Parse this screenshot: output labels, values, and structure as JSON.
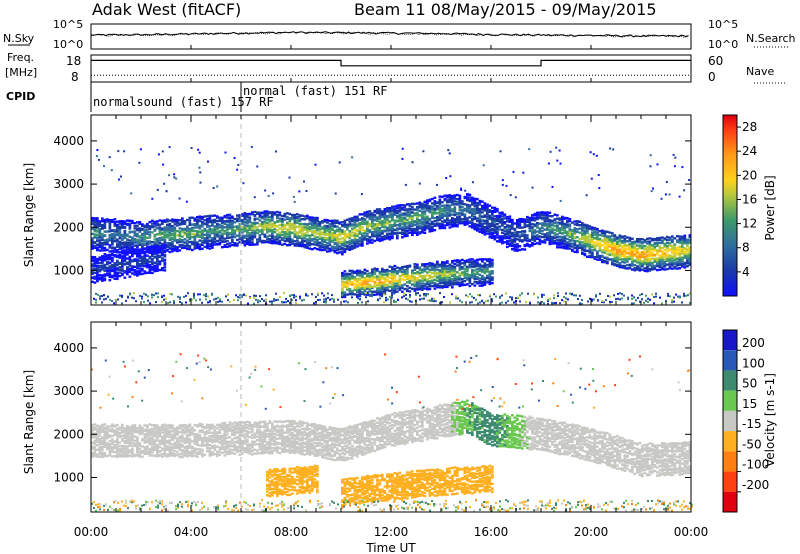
{
  "header": {
    "station": "Adak West (fitACF)",
    "beam_and_dates": "Beam 11  08/May/2015 - 09/May/2015"
  },
  "noise_panel": {
    "left_label": "N.Sky",
    "left_ticks": [
      "10^5",
      "10^0"
    ],
    "right_ticks": [
      "10^5",
      "10^0"
    ],
    "right_label": "N.Search"
  },
  "freq_panel": {
    "left_label_line1": "Freq.",
    "left_label_line2": "[MHz]",
    "left_ticks": [
      "18",
      "8"
    ],
    "right_ticks": [
      "60",
      "0"
    ],
    "right_label": "Nave"
  },
  "cpid_panel": {
    "label": "CPID",
    "programs": [
      {
        "name": "normalsound (fast) 157 RF",
        "start_hour": 0
      },
      {
        "name": "normal (fast) 151 RF",
        "start_hour": 6
      }
    ]
  },
  "x_axis": {
    "title": "Time UT",
    "ticks": [
      "00:00",
      "04:00",
      "08:00",
      "12:00",
      "16:00",
      "20:00",
      "00:00"
    ],
    "tick_hours": [
      0,
      4,
      8,
      12,
      16,
      20,
      24
    ]
  },
  "power_panel": {
    "ylabel": "Slant Range [km]",
    "yticks": [
      "1000",
      "2000",
      "3000",
      "4000"
    ],
    "colorbar_label": "Power [dB]",
    "colorbar_ticks": [
      "4",
      "8",
      "12",
      "16",
      "20",
      "24",
      "28"
    ]
  },
  "velocity_panel": {
    "ylabel": "Slant Range [km]",
    "yticks": [
      "1000",
      "2000",
      "3000",
      "4000"
    ],
    "colorbar_label": "Velocity [m s-1]",
    "colorbar_ticks": [
      "200",
      "100",
      "50",
      "15",
      "-15",
      "-50",
      "-100",
      "-200"
    ]
  },
  "chart_data": [
    {
      "type": "line",
      "title": "Adak West (fitACF)",
      "subtitle": "Beam 11  08/May/2015 - 09/May/2015",
      "panel": "noise",
      "xlabel": "",
      "ylabel": "N.Sky",
      "y_scale": "log",
      "ylim": [
        1,
        100000
      ],
      "x_range_hours": [
        0,
        24
      ],
      "series": [
        {
          "name": "N.Sky",
          "x": [
            0,
            2,
            4,
            6,
            8,
            10,
            12,
            14,
            16,
            18,
            20,
            22,
            24
          ],
          "values": [
            600,
            700,
            1000,
            1500,
            2000,
            1800,
            1500,
            1200,
            800,
            600,
            500,
            400,
            400
          ]
        },
        {
          "name": "N.Search",
          "x": [
            0,
            2,
            4,
            6,
            8,
            10,
            12,
            14,
            16,
            18,
            20,
            22,
            24
          ],
          "values": [
            500,
            600,
            900,
            1300,
            1800,
            1600,
            1300,
            1000,
            700,
            500,
            450,
            350,
            350
          ]
        }
      ]
    },
    {
      "type": "line",
      "panel": "frequency",
      "ylabel": "Freq. [MHz]",
      "ylim": [
        8,
        18
      ],
      "x_range_hours": [
        0,
        24
      ],
      "series": [
        {
          "name": "Freq.",
          "x": [
            0,
            10,
            10,
            18,
            18,
            24
          ],
          "values": [
            16,
            16,
            14,
            14,
            16,
            16
          ]
        },
        {
          "name": "Nave",
          "x": [
            0,
            24
          ],
          "values": [
            15,
            15
          ],
          "axis": "right",
          "ylim": [
            0,
            60
          ]
        }
      ]
    },
    {
      "type": "heatmap",
      "panel": "power",
      "ylabel": "Slant Range [km]",
      "xlabel": "Time UT",
      "ylim": [
        200,
        4600
      ],
      "x_range_hours": [
        0,
        24
      ],
      "colorbar": {
        "label": "Power [dB]",
        "range": [
          0,
          30
        ],
        "ticks": [
          4,
          8,
          12,
          16,
          20,
          24,
          28
        ]
      },
      "bands": [
        {
          "x": [
            0,
            1,
            2,
            3,
            4,
            5,
            6,
            7,
            8,
            9,
            10,
            11,
            12,
            13,
            14,
            15,
            16,
            17,
            18,
            19,
            20,
            21,
            22,
            23,
            24
          ],
          "range_km": [
            1900,
            1850,
            1800,
            1850,
            1900,
            1950,
            2000,
            2050,
            2000,
            1900,
            1800,
            2050,
            2150,
            2250,
            2400,
            2450,
            2150,
            1850,
            2050,
            1900,
            1700,
            1500,
            1400,
            1450,
            1500
          ],
          "power_db": [
            14,
            12,
            14,
            16,
            16,
            14,
            16,
            18,
            20,
            18,
            20,
            18,
            16,
            16,
            14,
            12,
            10,
            10,
            14,
            16,
            20,
            24,
            24,
            22,
            20
          ]
        },
        {
          "x": [
            10,
            11,
            12,
            13,
            14,
            15,
            16
          ],
          "range_km": [
            700,
            760,
            820,
            880,
            940,
            980,
            1000
          ],
          "power_db": [
            22,
            24,
            22,
            20,
            18,
            16,
            14
          ]
        },
        {
          "x": [
            0,
            1,
            2,
            3
          ],
          "range_km": [
            1050,
            1150,
            1250,
            1350
          ],
          "power_db": [
            8,
            8,
            8,
            8
          ]
        }
      ]
    },
    {
      "type": "heatmap",
      "panel": "velocity",
      "ylabel": "Slant Range [km]",
      "xlabel": "Time UT",
      "ylim": [
        200,
        4600
      ],
      "x_range_hours": [
        0,
        24
      ],
      "colorbar": {
        "label": "Velocity [m s-1]",
        "range": [
          -250,
          250
        ],
        "ticks": [
          200,
          100,
          50,
          15,
          -15,
          -50,
          -100,
          -200
        ]
      },
      "bands": [
        {
          "x": [
            0,
            4,
            8,
            10,
            12,
            14,
            15,
            16,
            18,
            20,
            22,
            24
          ],
          "range_km": [
            1900,
            1900,
            2000,
            1800,
            2150,
            2350,
            2450,
            2150,
            2050,
            1800,
            1450,
            1500
          ],
          "velocity": [
            0,
            0,
            0,
            0,
            0,
            0,
            30,
            40,
            0,
            0,
            0,
            0
          ]
        },
        {
          "x": [
            10,
            12,
            14,
            16
          ],
          "range_km": [
            700,
            820,
            940,
            1000
          ],
          "velocity": [
            -40,
            -40,
            -40,
            -30
          ]
        },
        {
          "x": [
            7,
            8,
            9
          ],
          "range_km": [
            900,
            950,
            1000
          ],
          "velocity": [
            -40,
            -40,
            -40
          ]
        }
      ]
    }
  ]
}
